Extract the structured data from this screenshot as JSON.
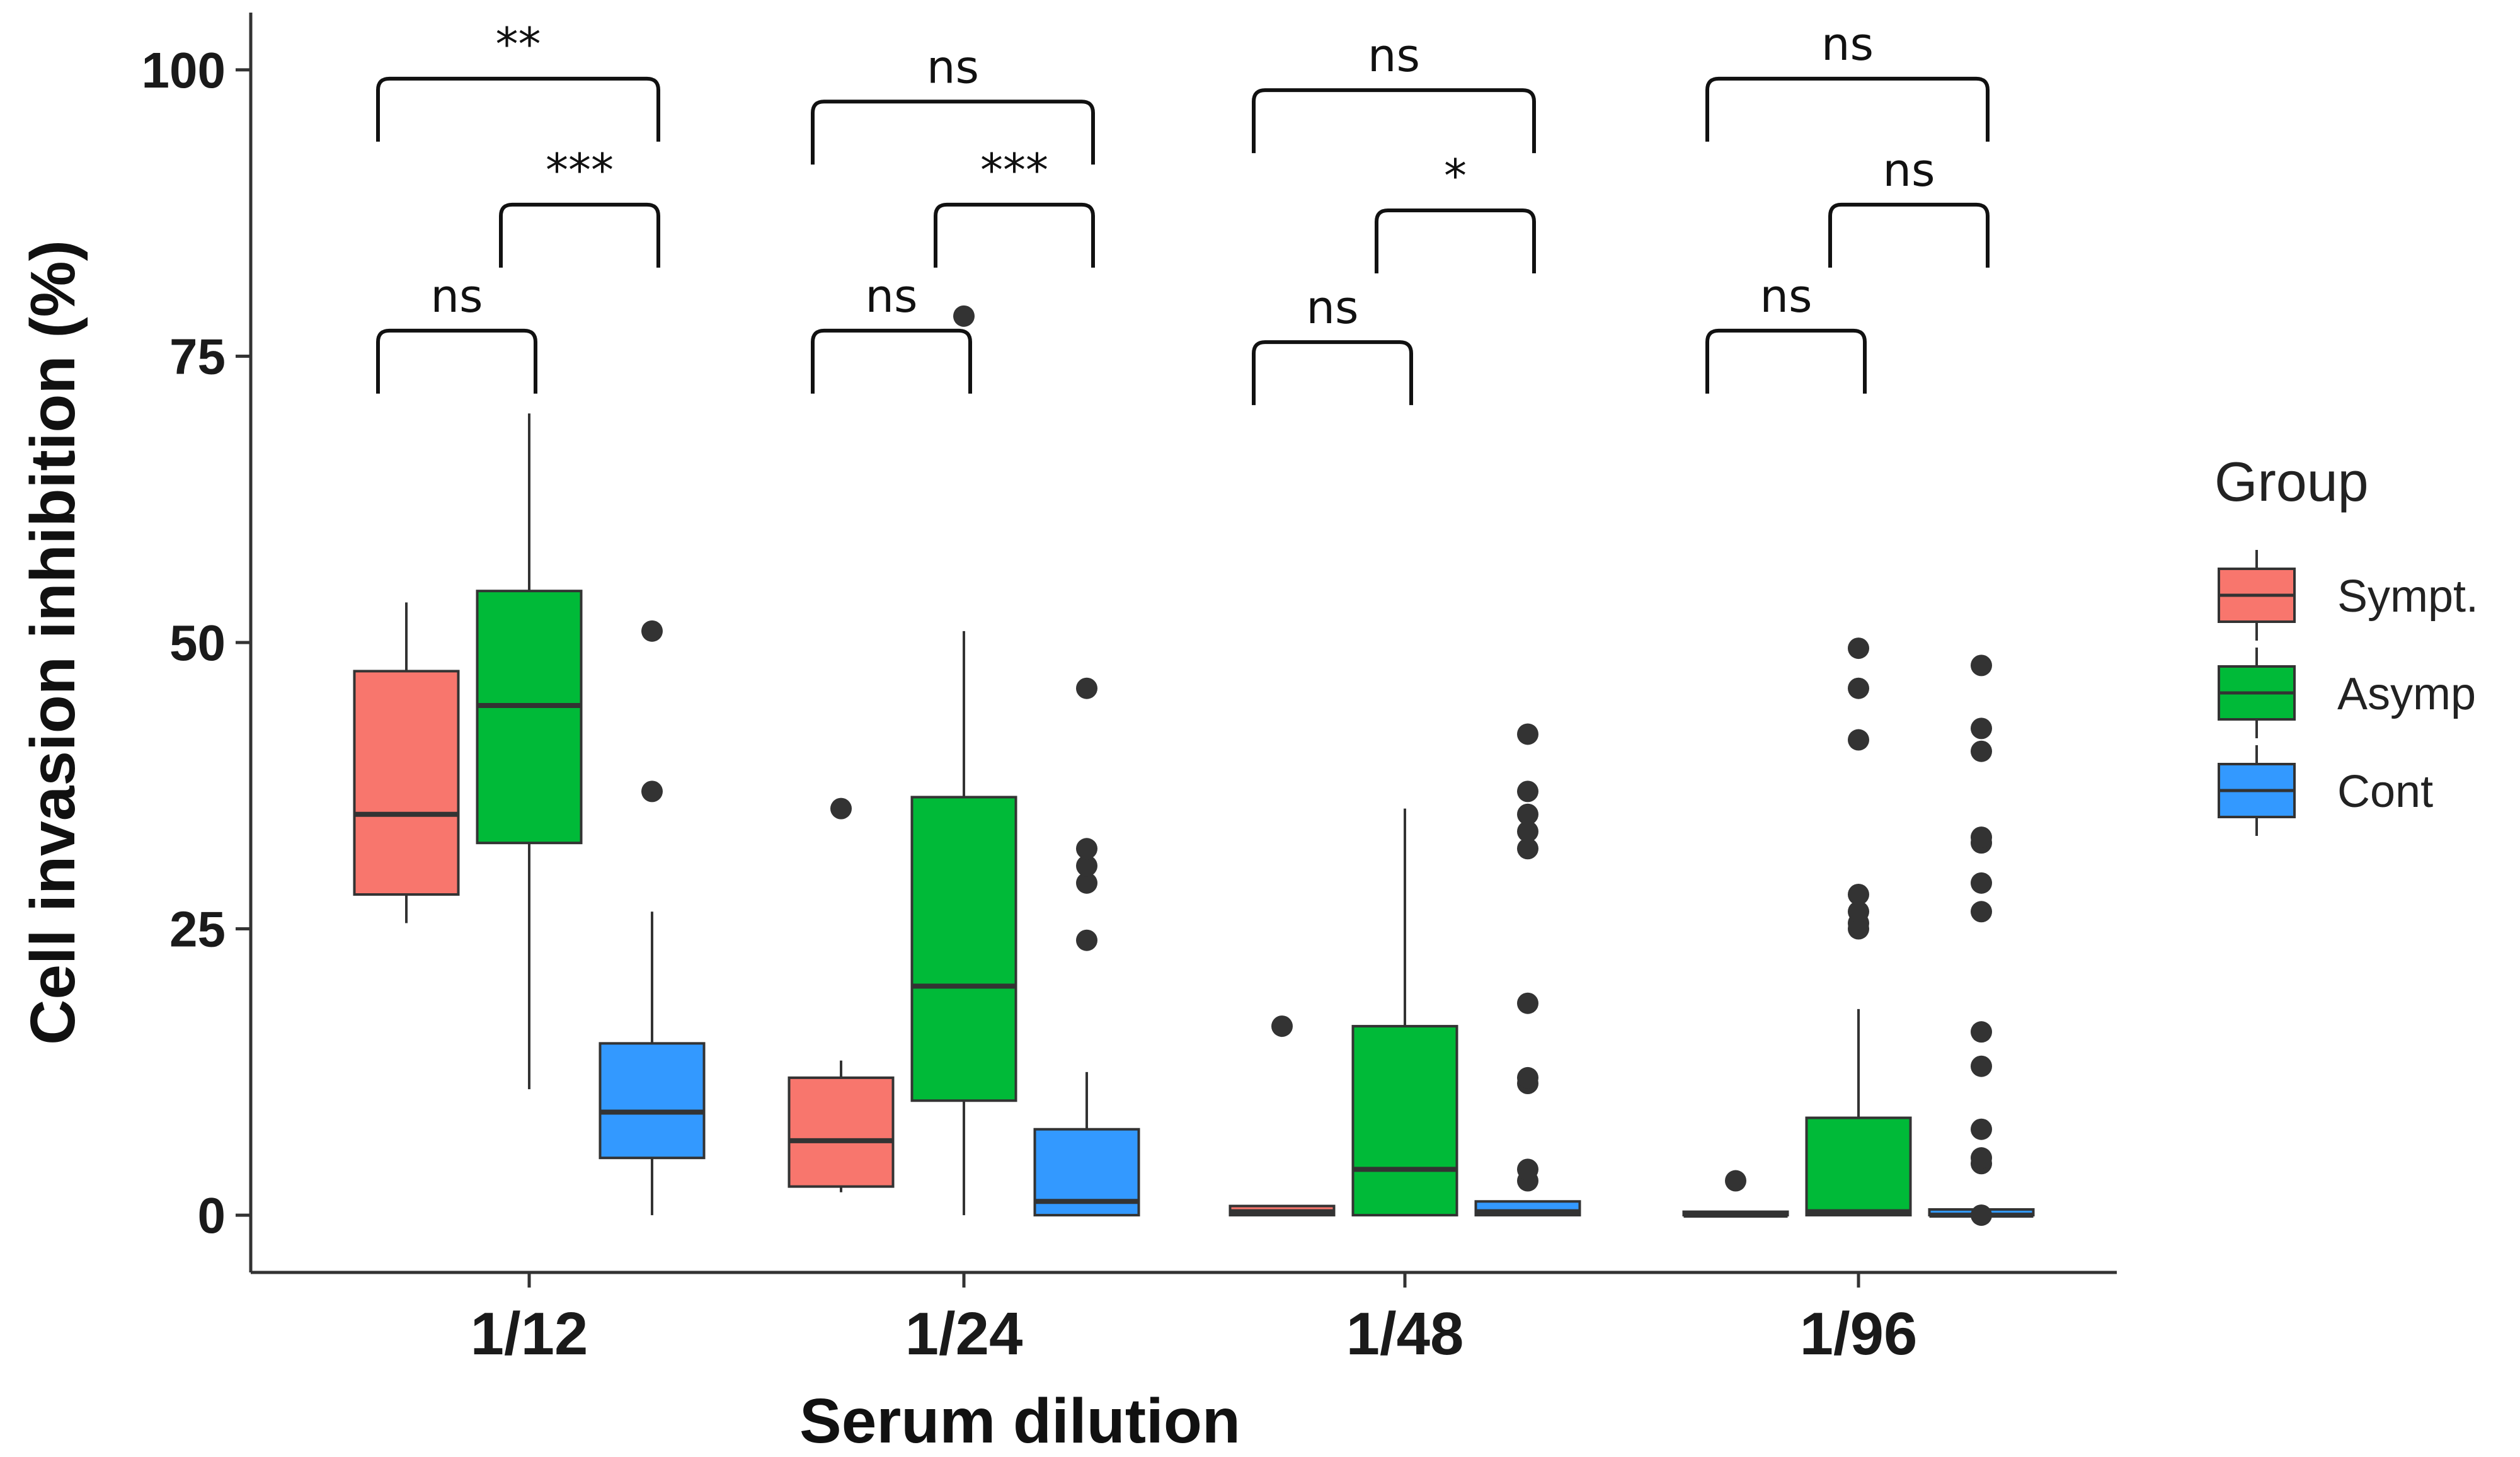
{
  "chart_data": {
    "type": "box",
    "xlabel": "Serum dilution",
    "ylabel": "Cell invasion inhibition (%)",
    "ylim": [
      -5,
      105
    ],
    "yticks": [
      "0",
      "25",
      "50",
      "75",
      "100"
    ],
    "grid": false,
    "categories": [
      "1/12",
      "1/24",
      "1/48",
      "1/96"
    ],
    "legend": {
      "title": "Group",
      "placement": "right",
      "entries": [
        {
          "name": "Sympt.",
          "color": "#F8766D"
        },
        {
          "name": "Asymp",
          "color": "#00BA38"
        },
        {
          "name": "Cont",
          "color": "#3399FF"
        }
      ]
    },
    "series": [
      {
        "name": "Sympt.",
        "color": "#F8766D",
        "boxes": [
          {
            "whisker_low": 25.5,
            "q1": 28,
            "median": 35,
            "q3": 47.5,
            "whisker_high": 53.5,
            "outliers": []
          },
          {
            "whisker_low": 2,
            "q1": 2.5,
            "median": 6.5,
            "q3": 12,
            "whisker_high": 13.5,
            "outliers": [
              35.5
            ]
          },
          {
            "whisker_low": 0,
            "q1": 0,
            "median": 0.3,
            "q3": 0.8,
            "whisker_high": 0.8,
            "outliers": [
              16.5
            ]
          },
          {
            "whisker_low": 0,
            "q1": 0,
            "median": 0,
            "q3": 0.3,
            "whisker_high": 0.3,
            "outliers": [
              3
            ]
          }
        ]
      },
      {
        "name": "Asymp",
        "color": "#00BA38",
        "boxes": [
          {
            "whisker_low": 11,
            "q1": 32.5,
            "median": 44.5,
            "q3": 54.5,
            "whisker_high": 70,
            "outliers": []
          },
          {
            "whisker_low": 0,
            "q1": 10,
            "median": 20,
            "q3": 36.5,
            "whisker_high": 51,
            "outliers": [
              78.5
            ]
          },
          {
            "whisker_low": 0,
            "q1": 0,
            "median": 4,
            "q3": 16.5,
            "whisker_high": 35.5,
            "outliers": []
          },
          {
            "whisker_low": 0,
            "q1": 0,
            "median": 0.3,
            "q3": 8.5,
            "whisker_high": 18,
            "outliers": [
              25,
              25.5,
              26.5,
              28,
              41.5,
              46,
              49.5
            ]
          }
        ]
      },
      {
        "name": "Cont",
        "color": "#3399FF",
        "boxes": [
          {
            "whisker_low": 0,
            "q1": 5,
            "median": 9,
            "q3": 15,
            "whisker_high": 26.5,
            "outliers": [
              37,
              51
            ]
          },
          {
            "whisker_low": 0,
            "q1": 0,
            "median": 1.2,
            "q3": 7.5,
            "whisker_high": 12.5,
            "outliers": [
              24,
              29,
              30.5,
              32,
              46
            ]
          },
          {
            "whisker_low": 0,
            "q1": 0,
            "median": 0.3,
            "q3": 1.2,
            "whisker_high": 1.2,
            "outliers": [
              3,
              4,
              11.5,
              12,
              18.5,
              32,
              33.5,
              35,
              37,
              42
            ]
          },
          {
            "whisker_low": 0,
            "q1": 0,
            "median": 0,
            "q3": 0.5,
            "whisker_high": 0.5,
            "outliers": [
              0,
              4.5,
              5,
              7.5,
              13,
              16,
              26.5,
              29,
              32.5,
              33,
              40.5,
              42.5,
              48
            ]
          }
        ]
      }
    ],
    "comparisons": [
      {
        "group": 0,
        "pair": "Sympt.-Cont",
        "label": "**",
        "y": 100
      },
      {
        "group": 0,
        "pair": "Asymp-Cont",
        "label": "***",
        "y": 89
      },
      {
        "group": 0,
        "pair": "Sympt.-Asymp",
        "label": "ns",
        "y": 78
      },
      {
        "group": 1,
        "pair": "Sympt.-Cont",
        "label": "ns",
        "y": 98
      },
      {
        "group": 1,
        "pair": "Asymp-Cont",
        "label": "***",
        "y": 89
      },
      {
        "group": 1,
        "pair": "Sympt.-Asymp",
        "label": "ns",
        "y": 78
      },
      {
        "group": 2,
        "pair": "Sympt.-Cont",
        "label": "ns",
        "y": 99
      },
      {
        "group": 2,
        "pair": "Asymp-Cont",
        "label": "*",
        "y": 88.5
      },
      {
        "group": 2,
        "pair": "Sympt.-Asymp",
        "label": "ns",
        "y": 77
      },
      {
        "group": 3,
        "pair": "Sympt.-Cont",
        "label": "ns",
        "y": 100
      },
      {
        "group": 3,
        "pair": "Asymp-Cont",
        "label": "ns",
        "y": 89
      },
      {
        "group": 3,
        "pair": "Sympt.-Asymp",
        "label": "ns",
        "y": 78
      }
    ]
  }
}
